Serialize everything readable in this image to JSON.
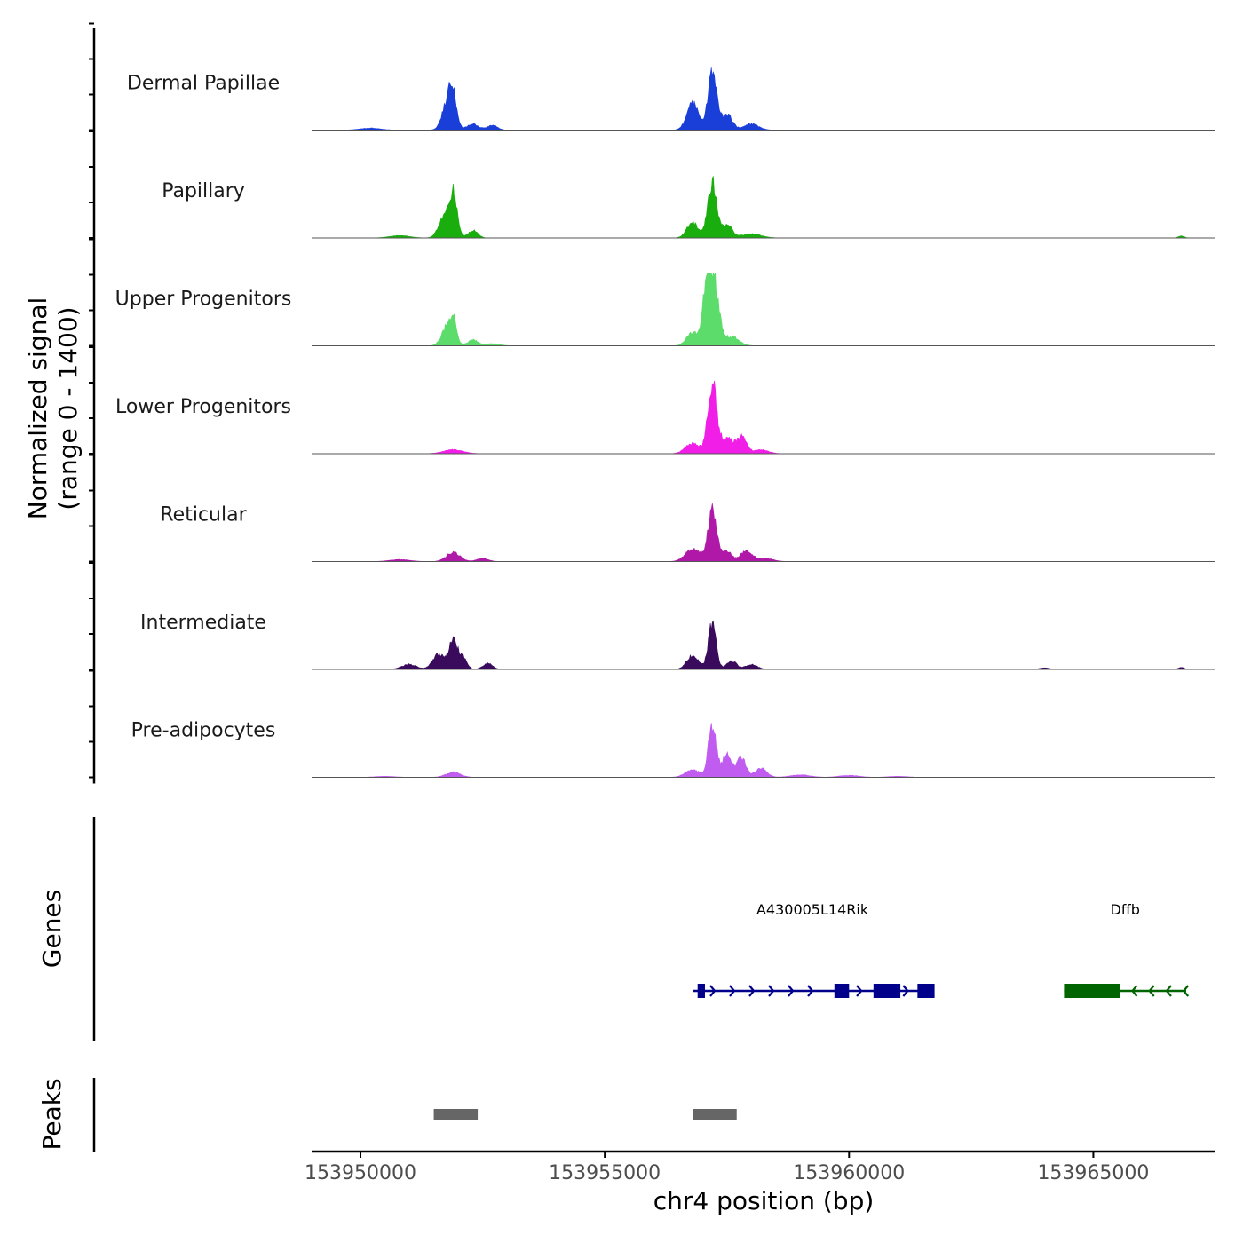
{
  "chart_data": {
    "type": "area",
    "title": "",
    "ylabel_line1": "Normalized signal",
    "ylabel_line2": "(range 0 - 1400)",
    "xlabel": "chr4 position (bp)",
    "xlim": [
      153949000,
      153967500
    ],
    "ylim": [
      0,
      1400
    ],
    "x_ticks": [
      {
        "value": 153950000,
        "label": "153950000"
      },
      {
        "value": 153955000,
        "label": "153955000"
      },
      {
        "value": 153960000,
        "label": "153960000"
      },
      {
        "value": 153965000,
        "label": "153965000"
      }
    ],
    "series": [
      {
        "name": "Dermal Papillae",
        "color": "#1a3fd9",
        "peaks": [
          [
            153951800,
            640,
            110
          ],
          [
            153951900,
            400,
            70
          ],
          [
            153952300,
            120,
            120
          ],
          [
            153952700,
            100,
            100
          ],
          [
            153956800,
            520,
            120
          ],
          [
            153957200,
            1130,
            90
          ],
          [
            153957500,
            300,
            110
          ],
          [
            153958000,
            120,
            150
          ],
          [
            153950200,
            40,
            200
          ]
        ]
      },
      {
        "name": "Papillary",
        "color": "#1aad0e",
        "peaks": [
          [
            153951700,
            380,
            110
          ],
          [
            153951900,
            870,
            80
          ],
          [
            153952300,
            150,
            100
          ],
          [
            153950800,
            50,
            200
          ],
          [
            153956800,
            300,
            120
          ],
          [
            153957200,
            1100,
            90
          ],
          [
            153957500,
            250,
            110
          ],
          [
            153958000,
            80,
            200
          ],
          [
            153966800,
            40,
            60
          ]
        ]
      },
      {
        "name": "Upper Progenitors",
        "color": "#5cdc6a",
        "peaks": [
          [
            153951800,
            420,
            120
          ],
          [
            153951900,
            320,
            60
          ],
          [
            153952300,
            120,
            100
          ],
          [
            153956800,
            280,
            120
          ],
          [
            153957100,
            1350,
            80
          ],
          [
            153957250,
            1100,
            100
          ],
          [
            153957600,
            180,
            150
          ],
          [
            153952700,
            40,
            150
          ]
        ]
      },
      {
        "name": "Lower Progenitors",
        "color": "#f01ee6",
        "peaks": [
          [
            153951900,
            80,
            200
          ],
          [
            153956800,
            200,
            150
          ],
          [
            153957200,
            1400,
            90
          ],
          [
            153957500,
            300,
            120
          ],
          [
            153957800,
            330,
            100
          ],
          [
            153958200,
            80,
            150
          ]
        ]
      },
      {
        "name": "Reticular",
        "color": "#b018a8",
        "peaks": [
          [
            153951900,
            180,
            140
          ],
          [
            153950800,
            40,
            200
          ],
          [
            153952500,
            60,
            120
          ],
          [
            153956800,
            250,
            150
          ],
          [
            153957200,
            1000,
            90
          ],
          [
            153957500,
            200,
            100
          ],
          [
            153957900,
            220,
            120
          ],
          [
            153958300,
            60,
            150
          ]
        ]
      },
      {
        "name": "Intermediate",
        "color": "#3a0b5c",
        "peaks": [
          [
            153951600,
            300,
            120
          ],
          [
            153951900,
            550,
            90
          ],
          [
            153952100,
            220,
            80
          ],
          [
            153952600,
            120,
            100
          ],
          [
            153951000,
            100,
            150
          ],
          [
            153956800,
            280,
            120
          ],
          [
            153957200,
            900,
            80
          ],
          [
            153957600,
            170,
            100
          ],
          [
            153958000,
            100,
            120
          ],
          [
            153964000,
            30,
            100
          ],
          [
            153966800,
            40,
            60
          ]
        ]
      },
      {
        "name": "Pre-adipocytes",
        "color": "#c05cf0",
        "peaks": [
          [
            153951900,
            100,
            150
          ],
          [
            153956800,
            150,
            150
          ],
          [
            153957200,
            1050,
            80
          ],
          [
            153957500,
            450,
            100
          ],
          [
            153957800,
            400,
            90
          ],
          [
            153958200,
            180,
            120
          ],
          [
            153959000,
            50,
            200
          ],
          [
            153960000,
            40,
            200
          ],
          [
            153950500,
            20,
            200
          ],
          [
            153961000,
            20,
            200
          ]
        ]
      }
    ],
    "genes_label": "Genes",
    "peaks_label": "Peaks",
    "genes": [
      {
        "name": "A430005L14Rik",
        "strand": "+",
        "start": 153956800,
        "end": 153961700,
        "color": "#00008b",
        "exons": [
          [
            153956900,
            153957050
          ],
          [
            153959700,
            153960000
          ],
          [
            153960500,
            153961050
          ],
          [
            153961400,
            153961750
          ]
        ],
        "arrows": [
          153957250,
          153957650,
          153958050,
          153958450,
          153958850,
          153959250,
          153960250,
          153961200
        ]
      },
      {
        "name": "Dffb",
        "strand": "-",
        "start": 153964400,
        "end": 153966900,
        "color": "#006400",
        "exons": [
          [
            153964400,
            153965550
          ]
        ],
        "arrows": [
          153965800,
          153966150,
          153966500,
          153966850
        ]
      }
    ],
    "peak_regions": [
      [
        153951500,
        153952400
      ],
      [
        153956800,
        153957700
      ]
    ]
  }
}
